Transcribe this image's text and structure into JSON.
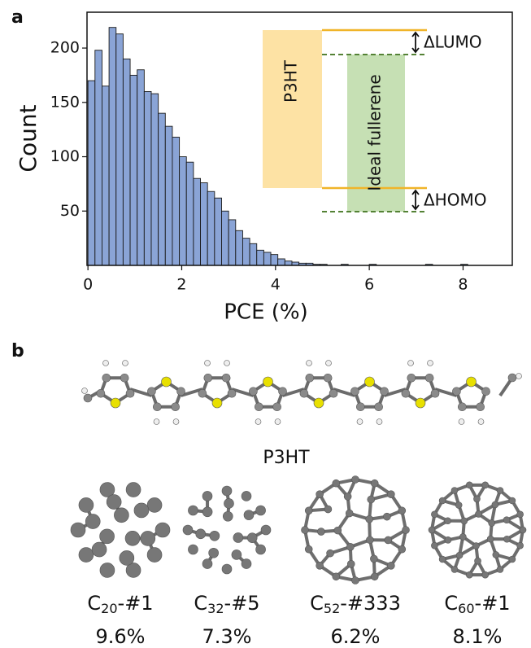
{
  "panel_labels": [
    "a",
    "b"
  ],
  "chart_data": {
    "type": "histogram",
    "xlabel": "PCE (%)",
    "ylabel": "Count",
    "bins": [
      0,
      0.15,
      0.3,
      0.45,
      0.6,
      0.75,
      0.9,
      1.05,
      1.2,
      1.35,
      1.5,
      1.65,
      1.8,
      1.95,
      2.1,
      2.25,
      2.4,
      2.55,
      2.7,
      2.85,
      3,
      3.15,
      3.3,
      3.45,
      3.6,
      3.75,
      3.9,
      4.05,
      4.2,
      4.35,
      4.5,
      4.65,
      4.8,
      4.95,
      5.1,
      5.25,
      5.4,
      5.55,
      5.7,
      5.85,
      6,
      6.15,
      6.3,
      6.45,
      6.6,
      6.75,
      6.9,
      7.05,
      7.2,
      7.35,
      7.5,
      7.65,
      7.8,
      7.95,
      8.1,
      8.25
    ],
    "counts": [
      170,
      198,
      165,
      219,
      213,
      190,
      175,
      180,
      160,
      158,
      140,
      128,
      118,
      100,
      95,
      80,
      76,
      68,
      62,
      50,
      42,
      32,
      25,
      20,
      14,
      12,
      10,
      6,
      4,
      3,
      2,
      2,
      1,
      1,
      0,
      0,
      1,
      0,
      0,
      0,
      1,
      0,
      0,
      0,
      0,
      0,
      0,
      0,
      1,
      0,
      0,
      0,
      0,
      1,
      0
    ],
    "color": "#8aa4d6",
    "xlim": [
      -0.02,
      9.05
    ],
    "ylim": [
      0,
      233
    ],
    "xticks": [
      0,
      2,
      4,
      6,
      8
    ],
    "yticks": [
      50,
      100,
      150,
      200
    ],
    "annotations": [
      "P3HT",
      "Ideal fullerene",
      "ΔLUMO",
      "ΔHOMO"
    ]
  },
  "molecules": {
    "chain_label": "P3HT",
    "fullerenes": [
      {
        "element": "C",
        "size": "20",
        "suffix": "-#1",
        "pce": "9.6%"
      },
      {
        "element": "C",
        "size": "32",
        "suffix": "-#5",
        "pce": "7.3%"
      },
      {
        "element": "C",
        "size": "52",
        "suffix": "-#333",
        "pce": "6.2%"
      },
      {
        "element": "C",
        "size": "60",
        "suffix": "-#1",
        "pce": "8.1%"
      }
    ]
  }
}
